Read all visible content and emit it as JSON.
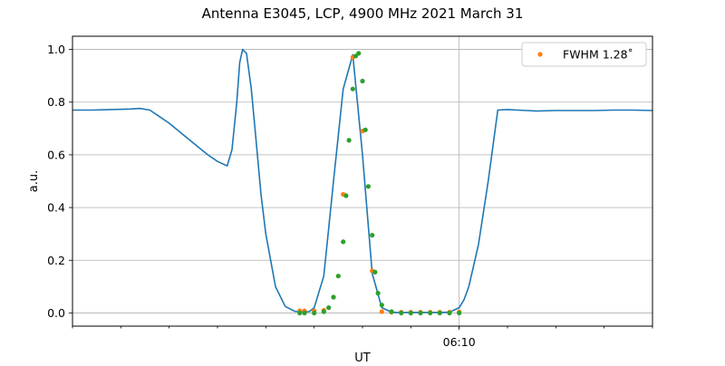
{
  "chart_data": {
    "type": "line",
    "title": "Antenna E3045, LCP, 4900 MHz 2021 March 31",
    "xlabel": "UT",
    "ylabel": "a.u.",
    "xlim": [
      0,
      60
    ],
    "ylim": [
      -0.05,
      1.05
    ],
    "y_ticks": [
      0.0,
      0.2,
      0.4,
      0.6,
      0.8,
      1.0
    ],
    "y_tick_labels": [
      "0.0",
      "0.2",
      "0.4",
      "0.6",
      "0.8",
      "1.0"
    ],
    "x_minor_ticks": [
      0,
      5,
      10,
      15,
      20,
      25,
      30,
      35,
      40,
      45,
      50,
      55,
      60
    ],
    "x_major_ticks": [
      {
        "value": 40,
        "label": "06:10"
      }
    ],
    "grid": true,
    "legend": {
      "position": "top-right",
      "label": "FWHM 1.28$^\\circ$",
      "display_label": "FWHM 1.28˚"
    },
    "colors": {
      "line": "#1f77b4",
      "fit": "#ff7f0e",
      "samples": "#2ca02c"
    },
    "series": [
      {
        "role": "line",
        "x": [
          0,
          2,
          4,
          6,
          7,
          8,
          9,
          10,
          11,
          12,
          13,
          14,
          15,
          16,
          16.5,
          17,
          17.3,
          17.6,
          18,
          18.5,
          19,
          19.5,
          20,
          21,
          22,
          23,
          24,
          24.5,
          25,
          26,
          27,
          28,
          29,
          30,
          31,
          32,
          33,
          33.5,
          34,
          34.5,
          35,
          36,
          37,
          38,
          39,
          40,
          40.5,
          41,
          42,
          43,
          44,
          45,
          46,
          47,
          48,
          50,
          52,
          54,
          56,
          58,
          60
        ],
        "y": [
          0.77,
          0.77,
          0.772,
          0.774,
          0.776,
          0.77,
          0.745,
          0.72,
          0.69,
          0.66,
          0.63,
          0.6,
          0.575,
          0.558,
          0.62,
          0.8,
          0.95,
          1.0,
          0.985,
          0.85,
          0.65,
          0.45,
          0.3,
          0.1,
          0.025,
          0.006,
          0.005,
          0.005,
          0.02,
          0.14,
          0.5,
          0.85,
          0.98,
          0.6,
          0.15,
          0.02,
          0.003,
          0.002,
          0.002,
          0.002,
          0.002,
          0.002,
          0.002,
          0.002,
          0.003,
          0.02,
          0.05,
          0.1,
          0.26,
          0.5,
          0.77,
          0.772,
          0.77,
          0.768,
          0.766,
          0.768,
          0.768,
          0.768,
          0.77,
          0.77,
          0.768
        ]
      },
      {
        "role": "fit",
        "name": "FWHM 1.28˚",
        "x": [
          23.5,
          24,
          25,
          26,
          27,
          28,
          29,
          30,
          31,
          32,
          33,
          34,
          35,
          36,
          37,
          38,
          39,
          40
        ],
        "y": [
          0.008,
          0.008,
          0.008,
          0.01,
          0.06,
          0.45,
          0.97,
          0.69,
          0.16,
          0.005,
          0.003,
          0.003,
          0.003,
          0.003,
          0.003,
          0.003,
          0.003,
          0.004
        ]
      },
      {
        "role": "samples",
        "x": [
          23.5,
          24,
          25,
          26,
          26.5,
          27,
          27.5,
          28,
          28.3,
          28.6,
          29,
          29.3,
          29.6,
          30,
          30.3,
          30.6,
          31,
          31.3,
          31.6,
          32,
          33,
          34,
          35,
          36,
          37,
          38,
          39,
          40
        ],
        "y": [
          0.0,
          0.0,
          0.0,
          0.005,
          0.02,
          0.06,
          0.14,
          0.27,
          0.445,
          0.655,
          0.85,
          0.975,
          0.985,
          0.88,
          0.695,
          0.48,
          0.295,
          0.155,
          0.075,
          0.03,
          0.005,
          0.0,
          0.0,
          0.0,
          0.0,
          0.0,
          0.0,
          0.0
        ]
      }
    ]
  }
}
